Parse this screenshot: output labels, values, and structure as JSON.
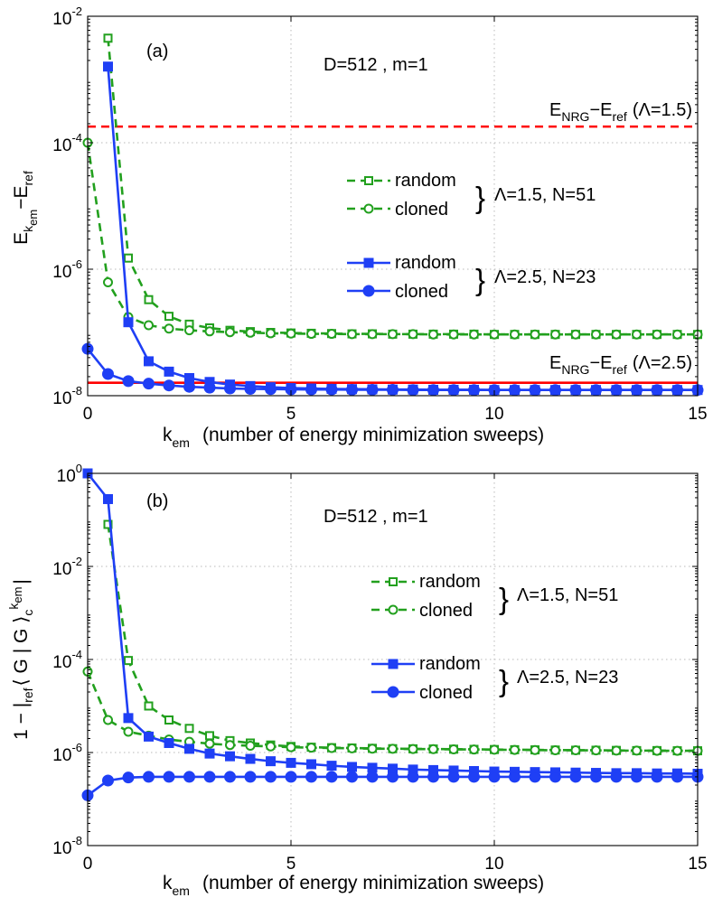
{
  "chart_data": [
    {
      "type": "line",
      "panel_label": "(a)",
      "params_text": "D=512 , m=1",
      "x_scale": "linear",
      "y_scale": "log",
      "xlim": [
        0,
        15
      ],
      "ylim": [
        1e-08,
        0.01
      ],
      "x_ticks": [
        0,
        5,
        10,
        15
      ],
      "y_tick_exponents": [
        -8,
        -6,
        -4,
        -2
      ],
      "tick_base": "10",
      "xlabel": {
        "main": "k",
        "sub": "em",
        "rest": "(number of energy minimization sweeps)"
      },
      "ylabel": {
        "p1": "E",
        "s1": "k",
        "s2": "em",
        "p2": "−E",
        "s3": "ref"
      },
      "grid": true,
      "reference_lines": [
        {
          "y": 0.00018,
          "color": "#ff0000",
          "style": "dashed",
          "label": {
            "E": "E",
            "nrg": "NRG",
            "minus": "−E",
            "ref": "ref",
            "param": "(Λ=1.5)"
          }
        },
        {
          "y": 1.6e-08,
          "color": "#ff0000",
          "style": "solid",
          "label": {
            "E": "E",
            "nrg": "NRG",
            "minus": "−E",
            "ref": "ref",
            "param": "(Λ=2.5)"
          }
        }
      ],
      "legend_groups": [
        {
          "label": "Λ=1.5, N=51",
          "entries": [
            "random",
            "cloned"
          ]
        },
        {
          "label": "Λ=2.5, N=23",
          "entries": [
            "random",
            "cloned"
          ]
        }
      ],
      "series": [
        {
          "name": "random",
          "group": "Λ=1.5, N=51",
          "color": "#22a01e",
          "dash": true,
          "marker": "square",
          "filled": false,
          "x": [
            0.5,
            1,
            1.5,
            2,
            2.5,
            3,
            3.5,
            4,
            4.5,
            5,
            5.5,
            6,
            6.5,
            7,
            7.5,
            8,
            8.5,
            9,
            9.5,
            10,
            10.5,
            11,
            11.5,
            12,
            12.5,
            13,
            13.5,
            14,
            14.5,
            15
          ],
          "y": [
            0.0045,
            1.5e-06,
            3.3e-07,
            1.8e-07,
            1.35e-07,
            1.18e-07,
            1.08e-07,
            1.03e-07,
            1e-07,
            9.8e-08,
            9.7e-08,
            9.6e-08,
            9.5e-08,
            9.5e-08,
            9.4e-08,
            9.4e-08,
            9.4e-08,
            9.4e-08,
            9.4e-08,
            9.3e-08,
            9.3e-08,
            9.3e-08,
            9.3e-08,
            9.3e-08,
            9.3e-08,
            9.3e-08,
            9.3e-08,
            9.3e-08,
            9.3e-08,
            9.3e-08
          ]
        },
        {
          "name": "cloned",
          "group": "Λ=1.5, N=51",
          "color": "#22a01e",
          "dash": true,
          "marker": "circle",
          "filled": false,
          "x": [
            0,
            0.5,
            1,
            1.5,
            2,
            2.5,
            3,
            3.5,
            4,
            4.5,
            5,
            5.5,
            6,
            6.5,
            7,
            7.5,
            8,
            8.5,
            9,
            9.5,
            10,
            10.5,
            11,
            11.5,
            12,
            12.5,
            13,
            13.5,
            14,
            14.5,
            15
          ],
          "y": [
            0.0001,
            6.2e-07,
            1.75e-07,
            1.3e-07,
            1.15e-07,
            1.08e-07,
            1.04e-07,
            1.01e-07,
            9.9e-08,
            9.7e-08,
            9.6e-08,
            9.5e-08,
            9.5e-08,
            9.4e-08,
            9.4e-08,
            9.4e-08,
            9.4e-08,
            9.3e-08,
            9.3e-08,
            9.3e-08,
            9.3e-08,
            9.3e-08,
            9.3e-08,
            9.3e-08,
            9.3e-08,
            9.3e-08,
            9.3e-08,
            9.3e-08,
            9.3e-08,
            9.3e-08,
            9.3e-08
          ]
        },
        {
          "name": "random",
          "group": "Λ=2.5, N=23",
          "color": "#1f3ff5",
          "dash": false,
          "marker": "square",
          "filled": true,
          "x": [
            0.5,
            1,
            1.5,
            2,
            2.5,
            3,
            3.5,
            4,
            4.5,
            5,
            5.5,
            6,
            6.5,
            7,
            7.5,
            8,
            8.5,
            9,
            9.5,
            10,
            10.5,
            11,
            11.5,
            12,
            12.5,
            13,
            13.5,
            14,
            14.5,
            15
          ],
          "y": [
            0.0016,
            1.45e-07,
            3.5e-08,
            2.4e-08,
            1.9e-08,
            1.65e-08,
            1.5e-08,
            1.42e-08,
            1.36e-08,
            1.32e-08,
            1.3e-08,
            1.28e-08,
            1.27e-08,
            1.26e-08,
            1.25e-08,
            1.25e-08,
            1.24e-08,
            1.24e-08,
            1.24e-08,
            1.23e-08,
            1.23e-08,
            1.23e-08,
            1.23e-08,
            1.23e-08,
            1.23e-08,
            1.23e-08,
            1.23e-08,
            1.23e-08,
            1.23e-08,
            1.23e-08
          ]
        },
        {
          "name": "cloned",
          "group": "Λ=2.5, N=23",
          "color": "#1f3ff5",
          "dash": false,
          "marker": "circle",
          "filled": true,
          "x": [
            0,
            0.5,
            1,
            1.5,
            2,
            2.5,
            3,
            3.5,
            4,
            4.5,
            5,
            5.5,
            6,
            6.5,
            7,
            7.5,
            8,
            8.5,
            9,
            9.5,
            10,
            10.5,
            11,
            11.5,
            12,
            12.5,
            13,
            13.5,
            14,
            14.5,
            15
          ],
          "y": [
            5.5e-08,
            2.2e-08,
            1.7e-08,
            1.55e-08,
            1.45e-08,
            1.38e-08,
            1.34e-08,
            1.3e-08,
            1.28e-08,
            1.27e-08,
            1.26e-08,
            1.25e-08,
            1.25e-08,
            1.24e-08,
            1.24e-08,
            1.24e-08,
            1.23e-08,
            1.23e-08,
            1.23e-08,
            1.23e-08,
            1.23e-08,
            1.23e-08,
            1.23e-08,
            1.23e-08,
            1.23e-08,
            1.23e-08,
            1.23e-08,
            1.23e-08,
            1.23e-08,
            1.23e-08,
            1.23e-08
          ]
        }
      ]
    },
    {
      "type": "line",
      "panel_label": "(b)",
      "params_text": "D=512 , m=1",
      "x_scale": "linear",
      "y_scale": "log",
      "xlim": [
        0,
        15
      ],
      "ylim": [
        1e-08,
        1
      ],
      "x_ticks": [
        0,
        5,
        10,
        15
      ],
      "y_tick_exponents": [
        -8,
        -6,
        -4,
        -2,
        0
      ],
      "tick_base": "10",
      "xlabel": {
        "main": "k",
        "sub": "em",
        "rest": "(number of energy minimization sweeps)"
      },
      "ylabel": {
        "p1": "1 − |",
        "s1": "ref",
        "p2": "⟨ G | G ⟩",
        "s2": "c",
        "s3": "k",
        "s4": "em",
        "p3": "|"
      },
      "grid": true,
      "legend_groups": [
        {
          "label": "Λ=1.5, N=51",
          "entries": [
            "random",
            "cloned"
          ]
        },
        {
          "label": "Λ=2.5, N=23",
          "entries": [
            "random",
            "cloned"
          ]
        }
      ],
      "series": [
        {
          "name": "random",
          "group": "Λ=1.5, N=51",
          "color": "#22a01e",
          "dash": true,
          "marker": "square",
          "filled": false,
          "x": [
            0.5,
            1,
            1.5,
            2,
            2.5,
            3,
            3.5,
            4,
            4.5,
            5,
            5.5,
            6,
            6.5,
            7,
            7.5,
            8,
            8.5,
            9,
            9.5,
            10,
            10.5,
            11,
            11.5,
            12,
            12.5,
            13,
            13.5,
            14,
            14.5,
            15
          ],
          "y": [
            0.08,
            9.5e-05,
            1e-05,
            5e-06,
            3.3e-06,
            2.3e-06,
            1.8e-06,
            1.6e-06,
            1.45e-06,
            1.35e-06,
            1.3e-06,
            1.27e-06,
            1.25e-06,
            1.23e-06,
            1.21e-06,
            1.2e-06,
            1.19e-06,
            1.18e-06,
            1.17e-06,
            1.16e-06,
            1.15e-06,
            1.14e-06,
            1.13e-06,
            1.12e-06,
            1.12e-06,
            1.11e-06,
            1.1e-06,
            1.1e-06,
            1.09e-06,
            1.09e-06
          ]
        },
        {
          "name": "cloned",
          "group": "Λ=1.5, N=51",
          "color": "#22a01e",
          "dash": true,
          "marker": "circle",
          "filled": false,
          "x": [
            0,
            0.5,
            1,
            1.5,
            2,
            2.5,
            3,
            3.5,
            4,
            4.5,
            5,
            5.5,
            6,
            6.5,
            7,
            7.5,
            8,
            8.5,
            9,
            9.5,
            10,
            10.5,
            11,
            11.5,
            12,
            12.5,
            13,
            13.5,
            14,
            14.5,
            15
          ],
          "y": [
            5.5e-05,
            5e-06,
            2.8e-06,
            2.3e-06,
            1.9e-06,
            1.7e-06,
            1.55e-06,
            1.45e-06,
            1.4e-06,
            1.35e-06,
            1.3e-06,
            1.27e-06,
            1.25e-06,
            1.23e-06,
            1.21e-06,
            1.2e-06,
            1.19e-06,
            1.18e-06,
            1.17e-06,
            1.16e-06,
            1.15e-06,
            1.14e-06,
            1.13e-06,
            1.12e-06,
            1.12e-06,
            1.11e-06,
            1.1e-06,
            1.1e-06,
            1.09e-06,
            1.09e-06,
            1.09e-06
          ]
        },
        {
          "name": "random",
          "group": "Λ=2.5, N=23",
          "color": "#1f3ff5",
          "dash": false,
          "marker": "square",
          "filled": true,
          "x": [
            0,
            0.5,
            1,
            1.5,
            2,
            2.5,
            3,
            3.5,
            4,
            4.5,
            5,
            5.5,
            6,
            6.5,
            7,
            7.5,
            8,
            8.5,
            9,
            9.5,
            10,
            10.5,
            11,
            11.5,
            12,
            12.5,
            13,
            13.5,
            14,
            14.5,
            15
          ],
          "y": [
            1.0,
            0.28,
            5.5e-06,
            2.2e-06,
            1.6e-06,
            1.2e-06,
            9.5e-07,
            8.3e-07,
            7.3e-07,
            6.5e-07,
            6e-07,
            5.6e-07,
            5.2e-07,
            4.9e-07,
            4.7e-07,
            4.5e-07,
            4.3e-07,
            4.2e-07,
            4.1e-07,
            4e-07,
            3.9e-07,
            3.85e-07,
            3.8e-07,
            3.75e-07,
            3.7e-07,
            3.65e-07,
            3.6e-07,
            3.6e-07,
            3.55e-07,
            3.55e-07,
            3.5e-07
          ]
        },
        {
          "name": "cloned",
          "group": "Λ=2.5, N=23",
          "color": "#1f3ff5",
          "dash": false,
          "marker": "circle",
          "filled": true,
          "x": [
            0,
            0.5,
            1,
            1.5,
            2,
            2.5,
            3,
            3.5,
            4,
            4.5,
            5,
            5.5,
            6,
            6.5,
            7,
            7.5,
            8,
            8.5,
            9,
            9.5,
            10,
            10.5,
            11,
            11.5,
            12,
            12.5,
            13,
            13.5,
            14,
            14.5,
            15
          ],
          "y": [
            1.2e-07,
            2.5e-07,
            2.9e-07,
            3e-07,
            3e-07,
            3e-07,
            3e-07,
            3e-07,
            3e-07,
            3e-07,
            3e-07,
            3e-07,
            3e-07,
            3e-07,
            3e-07,
            3e-07,
            3e-07,
            3e-07,
            3e-07,
            3e-07,
            3e-07,
            3e-07,
            3e-07,
            3e-07,
            3e-07,
            3e-07,
            3e-07,
            3e-07,
            3e-07,
            3e-07,
            3e-07
          ]
        }
      ]
    }
  ]
}
